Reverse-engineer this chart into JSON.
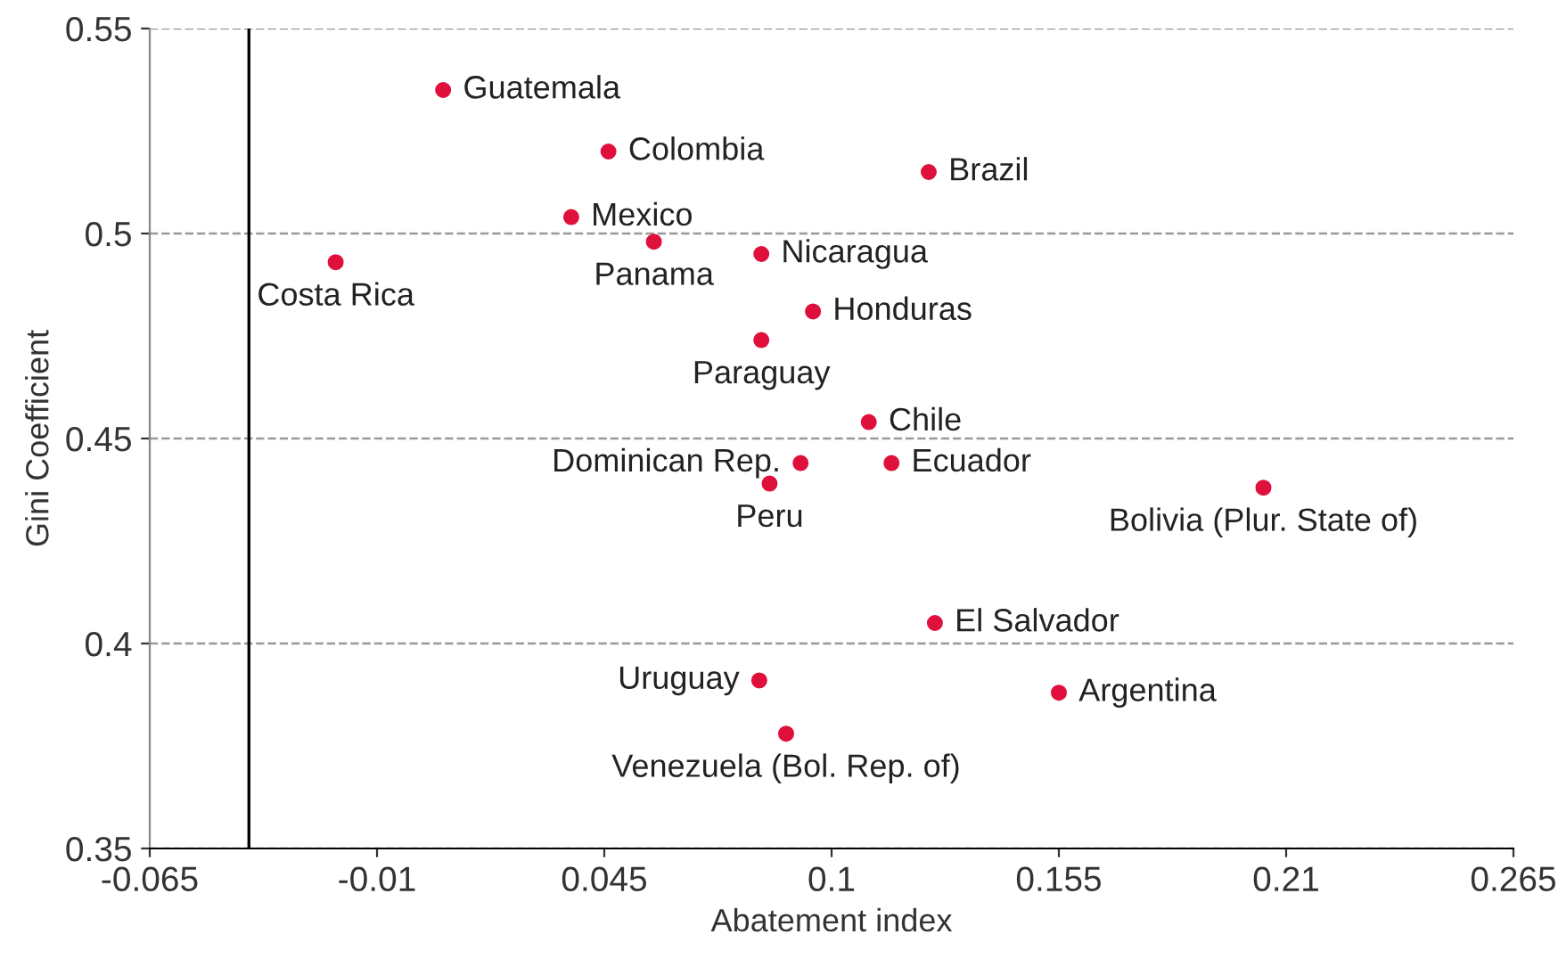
{
  "chart_data": {
    "type": "scatter",
    "xlabel": "Abatement index",
    "ylabel": "Gini Coefficient",
    "xlim": [
      -0.065,
      0.265
    ],
    "xticks": [
      -0.065,
      -0.01,
      0.045,
      0.1,
      0.155,
      0.21,
      0.265
    ],
    "ylim": [
      0.35,
      0.55
    ],
    "yticks": [
      0.35,
      0.4,
      0.45,
      0.5,
      0.55
    ],
    "grid": "y",
    "marker": "circle",
    "series": [
      {
        "color": "#e0103c",
        "x": [
          0.006,
          0.046,
          0.1235,
          0.037,
          0.057,
          -0.02,
          0.083,
          0.0955,
          0.083,
          0.109,
          0.0925,
          0.085,
          0.1145,
          0.2045,
          0.125,
          0.0825,
          0.155,
          0.089
        ],
        "values": [
          0.535,
          0.52,
          0.515,
          0.504,
          0.498,
          0.493,
          0.495,
          0.481,
          0.474,
          0.454,
          0.444,
          0.439,
          0.444,
          0.438,
          0.405,
          0.391,
          0.388,
          0.378
        ]
      }
    ],
    "annotations": [
      {
        "text": "Guatemala",
        "x": 0.006,
        "y": 0.535
      },
      {
        "text": "Colombia",
        "x": 0.046,
        "y": 0.52
      },
      {
        "text": "Brazil",
        "x": 0.1235,
        "y": 0.515
      },
      {
        "text": "Mexico",
        "x": 0.037,
        "y": 0.504
      },
      {
        "text": "Panama",
        "x": 0.057,
        "y": 0.498
      },
      {
        "text": "Costa Rica",
        "x": -0.02,
        "y": 0.493
      },
      {
        "text": "Nicaragua",
        "x": 0.083,
        "y": 0.495
      },
      {
        "text": "Honduras",
        "x": 0.0955,
        "y": 0.481
      },
      {
        "text": "Paraguay",
        "x": 0.083,
        "y": 0.474
      },
      {
        "text": "Chile",
        "x": 0.109,
        "y": 0.454
      },
      {
        "text": "Dominican Rep.",
        "x": 0.0925,
        "y": 0.444
      },
      {
        "text": "Peru",
        "x": 0.085,
        "y": 0.439
      },
      {
        "text": "Ecuador",
        "x": 0.1145,
        "y": 0.444
      },
      {
        "text": "Bolivia (Plur. State of)",
        "x": 0.2045,
        "y": 0.438
      },
      {
        "text": "El Salvador",
        "x": 0.125,
        "y": 0.405
      },
      {
        "text": "Uruguay",
        "x": 0.0825,
        "y": 0.391
      },
      {
        "text": "Argentina",
        "x": 0.155,
        "y": 0.388
      },
      {
        "text": "Venezuela (Bol. Rep. of)",
        "x": 0.089,
        "y": 0.378
      }
    ],
    "ref_lines": [
      {
        "axis": "x",
        "value": -0.041,
        "color": "#000000",
        "line_style": "solid"
      }
    ]
  }
}
